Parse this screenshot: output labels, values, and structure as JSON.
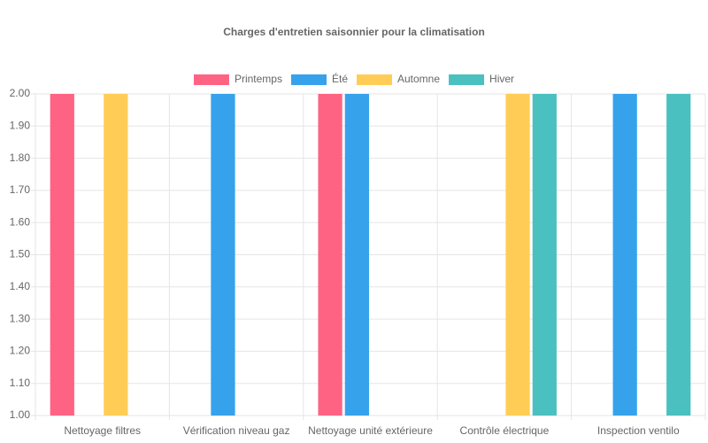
{
  "chart_data": {
    "type": "bar",
    "title": "Charges d'entretien saisonnier pour la climatisation",
    "categories": [
      "Nettoyage filtres",
      "Vérification niveau gaz",
      "Nettoyage unité extérieure",
      "Contrôle électrique",
      "Inspection ventilo"
    ],
    "series": [
      {
        "name": "Printemps",
        "color": "#ff6384",
        "values": [
          2,
          1,
          2,
          1,
          1
        ]
      },
      {
        "name": "Été",
        "color": "#36a2eb",
        "values": [
          1,
          2,
          2,
          1,
          2
        ]
      },
      {
        "name": "Automne",
        "color": "#ffcd56",
        "values": [
          2,
          1,
          1,
          2,
          1
        ]
      },
      {
        "name": "Hiver",
        "color": "#4bc0c0",
        "values": [
          1,
          1,
          1,
          2,
          2
        ]
      }
    ],
    "ylim": [
      1,
      2
    ],
    "yticks": [
      {
        "value": 1,
        "label": "1.00"
      },
      {
        "value": 1.1,
        "label": "1.10"
      },
      {
        "value": 1.2,
        "label": "1.20"
      },
      {
        "value": 1.3,
        "label": "1.30"
      },
      {
        "value": 1.4,
        "label": "1.40"
      },
      {
        "value": 1.5,
        "label": "1.50"
      },
      {
        "value": 1.6,
        "label": "1.60"
      },
      {
        "value": 1.7,
        "label": "1.70"
      },
      {
        "value": 1.8,
        "label": "1.80"
      },
      {
        "value": 1.9,
        "label": "1.90"
      },
      {
        "value": 2,
        "label": "2.00"
      }
    ],
    "grid": true,
    "legend": "top"
  }
}
